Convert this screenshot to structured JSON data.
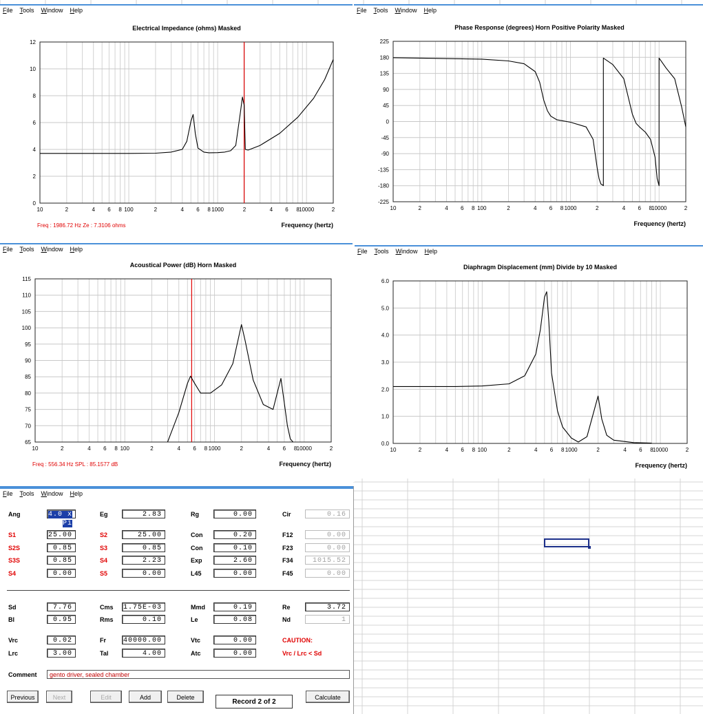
{
  "menu": [
    {
      "label": "File",
      "accel": "F"
    },
    {
      "label": "Tools",
      "accel": "T"
    },
    {
      "label": "Window",
      "accel": "W"
    },
    {
      "label": "Help",
      "accel": "H"
    }
  ],
  "charts": {
    "impedance": {
      "title": "Electrical Impedance (ohms)   Masked",
      "xlabel": "Frequency (hertz)",
      "readout": "Freq : 1986.72 Hz    Ze : 7.3106 ohms",
      "yticks": [
        "12",
        "10",
        "8",
        "6",
        "4",
        "2",
        "0"
      ],
      "xticks": [
        "10",
        "2",
        "4",
        "6",
        "8",
        "100",
        "2",
        "4",
        "6",
        "8",
        "1000",
        "2",
        "4",
        "6",
        "8",
        "10000",
        "2"
      ]
    },
    "phase": {
      "title": "Phase Response (degrees)   Horn   Positive Polarity   Masked",
      "xlabel": "Frequency (hertz)",
      "yticks": [
        "225",
        "180",
        "135",
        "90",
        "45",
        "0",
        "-45",
        "-90",
        "-135",
        "-180",
        "-225"
      ],
      "xticks": [
        "10",
        "2",
        "4",
        "6",
        "8",
        "100",
        "2",
        "4",
        "6",
        "8",
        "1000",
        "2",
        "4",
        "6",
        "8",
        "10000",
        "2"
      ]
    },
    "power": {
      "title": "Acoustical Power (dB)   Horn   Masked",
      "xlabel": "Frequency (hertz)",
      "readout": "Freq : 556.34 Hz    SPL : 85.1577 dB",
      "yticks": [
        "115",
        "110",
        "105",
        "100",
        "95",
        "90",
        "85",
        "80",
        "75",
        "70",
        "65"
      ],
      "xticks": [
        "10",
        "2",
        "4",
        "6",
        "8",
        "100",
        "2",
        "4",
        "6",
        "8",
        "1000",
        "2",
        "4",
        "6",
        "8",
        "10000",
        "2"
      ]
    },
    "displacement": {
      "title": "Diaphragm Displacement (mm)   Divide by 10   Masked",
      "xlabel": "Frequency (hertz)",
      "yticks": [
        "6.0",
        "5.0",
        "4.0",
        "3.0",
        "2.0",
        "1.0",
        "0.0"
      ],
      "xticks": [
        "10",
        "2",
        "4",
        "6",
        "8",
        "100",
        "2",
        "4",
        "6",
        "8",
        "1000",
        "2",
        "4",
        "6",
        "8",
        "10000",
        "2"
      ]
    }
  },
  "chart_data": [
    {
      "type": "line",
      "title": "Electrical Impedance (ohms)   Masked",
      "xlabel": "Frequency (hertz)",
      "ylabel": "",
      "xscale": "log",
      "xlim": [
        10,
        20000
      ],
      "ylim": [
        0,
        12
      ],
      "series": [
        {
          "x": [
            10,
            50,
            100,
            200,
            300,
            400,
            450,
            500,
            530,
            560,
            600,
            700,
            800,
            1000,
            1200,
            1400,
            1600,
            1800,
            1900,
            1986.72,
            2050,
            2200,
            3000,
            5000,
            8000,
            12000,
            16000,
            20000
          ],
          "y": [
            3.7,
            3.7,
            3.7,
            3.72,
            3.8,
            4.0,
            4.6,
            6.1,
            6.6,
            5.2,
            4.1,
            3.8,
            3.75,
            3.76,
            3.8,
            3.9,
            4.3,
            6.7,
            7.9,
            7.3,
            4.0,
            3.95,
            4.3,
            5.2,
            6.4,
            7.8,
            9.2,
            10.7
          ]
        }
      ],
      "cursor": {
        "x": 1986.72,
        "y": 7.3106
      }
    },
    {
      "type": "line",
      "title": "Phase Response (degrees)   Horn   Positive Polarity   Masked",
      "xlabel": "Frequency (hertz)",
      "ylabel": "",
      "xscale": "log",
      "xlim": [
        10,
        20000
      ],
      "ylim": [
        -225,
        225
      ],
      "series": [
        {
          "x": [
            10,
            100,
            200,
            300,
            400,
            450,
            500,
            550,
            600,
            700,
            1000,
            1500,
            1800,
            2000,
            2100,
            2200,
            2300,
            2350,
            2350.01,
            3000,
            4000,
            5000,
            5500,
            6000,
            7000,
            8000,
            9000,
            9500,
            10000,
            10000.01,
            12000,
            15000,
            18000,
            20000
          ],
          "y": [
            179,
            175,
            170,
            162,
            140,
            110,
            60,
            30,
            15,
            5,
            -2,
            -15,
            -50,
            -130,
            -160,
            -175,
            -178,
            -180,
            178,
            160,
            120,
            20,
            -5,
            -15,
            -30,
            -50,
            -100,
            -160,
            -180,
            178,
            150,
            120,
            40,
            -15
          ]
        }
      ]
    },
    {
      "type": "line",
      "title": "Acoustical Power (dB)   Horn   Masked",
      "xlabel": "Frequency (hertz)",
      "ylabel": "",
      "xscale": "log",
      "xlim": [
        10,
        20000
      ],
      "ylim": [
        65,
        115
      ],
      "series": [
        {
          "x": [
            300,
            400,
            500,
            540,
            600,
            700,
            900,
            1200,
            1600,
            2000,
            2200,
            2700,
            3500,
            4500,
            5000,
            5500,
            6000,
            6500,
            7000,
            7500
          ],
          "y": [
            65,
            74,
            83,
            85.2,
            83,
            80,
            80,
            82.5,
            89,
            101,
            96,
            84,
            76.5,
            75,
            80,
            84.5,
            77,
            70,
            66,
            65
          ]
        }
      ],
      "cursor": {
        "x": 556.34,
        "y": 85.1577
      }
    },
    {
      "type": "line",
      "title": "Diaphragm Displacement (mm)   Divide by 10   Masked",
      "xlabel": "Frequency (hertz)",
      "ylabel": "",
      "xscale": "log",
      "xlim": [
        10,
        20000
      ],
      "ylim": [
        0,
        6
      ],
      "series": [
        {
          "x": [
            10,
            50,
            100,
            200,
            300,
            400,
            450,
            500,
            530,
            560,
            600,
            700,
            800,
            1000,
            1200,
            1500,
            1800,
            2000,
            2200,
            2500,
            3000,
            5000,
            8000
          ],
          "y": [
            2.1,
            2.1,
            2.12,
            2.2,
            2.5,
            3.3,
            4.2,
            5.4,
            5.6,
            4.5,
            2.6,
            1.2,
            0.6,
            0.2,
            0.05,
            0.25,
            1.2,
            1.75,
            0.9,
            0.3,
            0.12,
            0.03,
            0.01
          ]
        }
      ]
    }
  ],
  "form": {
    "rows": [
      {
        "y": 34,
        "cells": [
          {
            "label": "Ang",
            "red": false,
            "value": "4.0 x Pi",
            "selected": true,
            "disabled": false
          },
          {
            "label": "Eg",
            "red": false,
            "value": "2.83",
            "disabled": false
          },
          {
            "label": "Rg",
            "red": false,
            "value": "0.00",
            "disabled": false
          },
          {
            "label": "Cir",
            "red": false,
            "value": "0.16",
            "disabled": true
          }
        ]
      },
      {
        "y": 64,
        "cells": [
          {
            "label": "S1",
            "red": true,
            "value": "25.00",
            "disabled": false
          },
          {
            "label": "S2",
            "red": true,
            "value": "25.00",
            "disabled": false
          },
          {
            "label": "Con",
            "red": false,
            "value": "0.20",
            "disabled": false
          },
          {
            "label": "F12",
            "red": false,
            "value": "0.00",
            "disabled": true
          }
        ]
      },
      {
        "y": 83,
        "cells": [
          {
            "label": "S2S",
            "red": true,
            "value": "0.85",
            "disabled": false
          },
          {
            "label": "S3",
            "red": true,
            "value": "0.85",
            "disabled": false
          },
          {
            "label": "Con",
            "red": false,
            "value": "0.10",
            "disabled": false
          },
          {
            "label": "F23",
            "red": false,
            "value": "0.00",
            "disabled": true
          }
        ]
      },
      {
        "y": 101,
        "cells": [
          {
            "label": "S3S",
            "red": true,
            "value": "0.85",
            "disabled": false
          },
          {
            "label": "S4",
            "red": true,
            "value": "2.23",
            "disabled": false
          },
          {
            "label": "Exp",
            "red": false,
            "value": "2.60",
            "disabled": false
          },
          {
            "label": "F34",
            "red": false,
            "value": "1015.52",
            "disabled": true
          }
        ]
      },
      {
        "y": 120,
        "cells": [
          {
            "label": "S4",
            "red": true,
            "value": "0.00",
            "disabled": false
          },
          {
            "label": "S5",
            "red": true,
            "value": "0.00",
            "disabled": false
          },
          {
            "label": "L45",
            "red": false,
            "value": "0.00",
            "disabled": false
          },
          {
            "label": "F45",
            "red": false,
            "value": "0.00",
            "disabled": true
          }
        ]
      },
      {
        "y": 169,
        "cells": [
          {
            "label": "Sd",
            "red": false,
            "value": "7.76",
            "disabled": false
          },
          {
            "label": "Cms",
            "red": false,
            "value": "1.75E-03",
            "disabled": false
          },
          {
            "label": "Mmd",
            "red": false,
            "value": "0.19",
            "disabled": false
          },
          {
            "label": "Re",
            "red": false,
            "value": "3.72",
            "disabled": false
          }
        ]
      },
      {
        "y": 187,
        "cells": [
          {
            "label": "Bl",
            "red": false,
            "value": "0.95",
            "disabled": false
          },
          {
            "label": "Rms",
            "red": false,
            "value": "0.10",
            "disabled": false
          },
          {
            "label": "Le",
            "red": false,
            "value": "0.08",
            "disabled": false
          },
          {
            "label": "Nd",
            "red": false,
            "value": "1",
            "disabled": true
          }
        ]
      },
      {
        "y": 217,
        "cells": [
          {
            "label": "Vrc",
            "red": false,
            "value": "0.02",
            "disabled": false
          },
          {
            "label": "Fr",
            "red": false,
            "value": "40000.00",
            "disabled": false
          },
          {
            "label": "Vtc",
            "red": false,
            "value": "0.00",
            "disabled": false
          }
        ]
      },
      {
        "y": 236,
        "cells": [
          {
            "label": "Lrc",
            "red": false,
            "value": "3.00",
            "disabled": false
          },
          {
            "label": "Tal",
            "red": false,
            "value": "4.00",
            "disabled": false
          },
          {
            "label": "Atc",
            "red": false,
            "value": "0.00",
            "disabled": false
          }
        ]
      }
    ],
    "caution_title": "CAUTION:",
    "caution_text": "Vrc / Lrc < Sd",
    "comment_label": "Comment",
    "comment_value": "gento driver, sealed chamber",
    "buttons": [
      {
        "label": "Previous",
        "disabled": false
      },
      {
        "label": "Next",
        "disabled": true
      },
      {
        "label": "Edit",
        "disabled": true
      },
      {
        "label": "Add",
        "disabled": false
      },
      {
        "label": "Delete",
        "disabled": false
      },
      {
        "label": "Calculate",
        "disabled": false
      }
    ],
    "record": "Record 2 of 2"
  },
  "colors": {
    "cursor": "#e00000",
    "accent": "#4a90d9",
    "selection": "#1c3fa8"
  }
}
